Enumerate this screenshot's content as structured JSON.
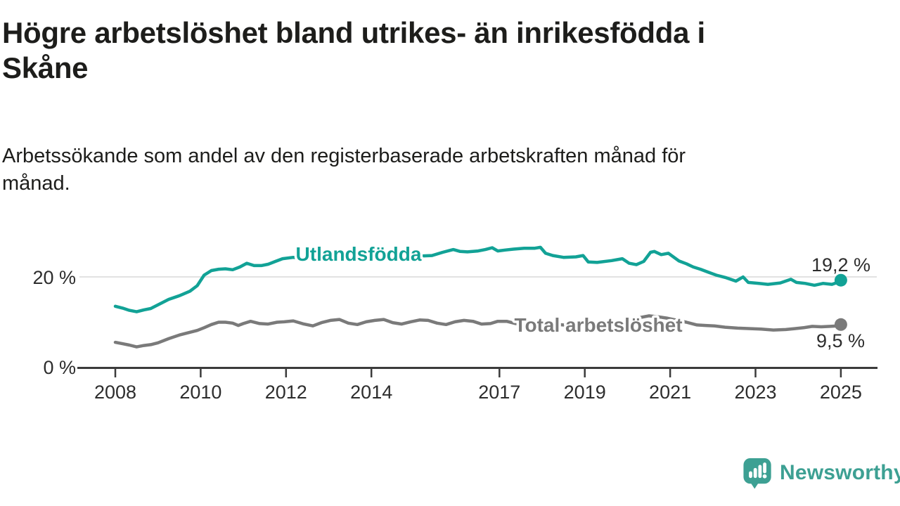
{
  "header": {
    "title": "Högre arbetslöshet bland utrikes- än inrikesfödda i Skåne",
    "subtitle": "Arbetssökande som andel av den registerbaserade arbetskraften månad för månad."
  },
  "chart_data": {
    "type": "line",
    "title": "Högre arbetslöshet bland utrikes- än inrikesfödda i Skåne",
    "subtitle": "Arbetssökande som andel av den registerbaserade arbetskraften månad för månad.",
    "xlabel": "",
    "ylabel": "",
    "grid": "horizontal-gridline-at-20-only",
    "legend": "inline-series-labels",
    "x_axis": {
      "range": [
        2007.1,
        2025.9
      ],
      "ticks": [
        2008,
        2010,
        2012,
        2014,
        2017,
        2019,
        2021,
        2023,
        2025
      ]
    },
    "y_axis": {
      "range": [
        0,
        29
      ],
      "ticks": [
        {
          "value": 0,
          "label": "0 %"
        },
        {
          "value": 20,
          "label": "20 %"
        }
      ]
    },
    "series": [
      {
        "name": "Utlandsfödda",
        "color": "#12a296",
        "end_value": 19.2,
        "end_label": "19,2 %",
        "points": [
          [
            2008.0,
            13.5
          ],
          [
            2008.17,
            13.1
          ],
          [
            2008.33,
            12.6
          ],
          [
            2008.5,
            12.3
          ],
          [
            2008.67,
            12.7
          ],
          [
            2008.83,
            13.0
          ],
          [
            2009.0,
            13.8
          ],
          [
            2009.25,
            15.0
          ],
          [
            2009.5,
            15.8
          ],
          [
            2009.75,
            16.8
          ],
          [
            2009.92,
            18.0
          ],
          [
            2010.08,
            20.3
          ],
          [
            2010.25,
            21.3
          ],
          [
            2010.42,
            21.6
          ],
          [
            2010.58,
            21.7
          ],
          [
            2010.75,
            21.5
          ],
          [
            2010.92,
            22.1
          ],
          [
            2011.08,
            22.9
          ],
          [
            2011.25,
            22.4
          ],
          [
            2011.42,
            22.4
          ],
          [
            2011.58,
            22.7
          ],
          [
            2011.75,
            23.3
          ],
          [
            2011.92,
            23.9
          ],
          [
            2012.17,
            24.2
          ],
          [
            2012.42,
            24.0
          ],
          [
            2012.67,
            24.3
          ],
          [
            2012.92,
            24.6
          ],
          [
            2013.17,
            24.4
          ],
          [
            2013.42,
            24.5
          ],
          [
            2013.67,
            24.7
          ],
          [
            2013.92,
            24.8
          ],
          [
            2014.17,
            24.9
          ],
          [
            2014.42,
            24.7
          ],
          [
            2014.67,
            24.9
          ],
          [
            2014.92,
            24.7
          ],
          [
            2015.17,
            24.5
          ],
          [
            2015.42,
            24.6
          ],
          [
            2015.67,
            25.3
          ],
          [
            2015.92,
            25.9
          ],
          [
            2016.08,
            25.5
          ],
          [
            2016.25,
            25.4
          ],
          [
            2016.5,
            25.6
          ],
          [
            2016.67,
            25.9
          ],
          [
            2016.83,
            26.3
          ],
          [
            2016.96,
            25.6
          ],
          [
            2017.13,
            25.8
          ],
          [
            2017.33,
            26.0
          ],
          [
            2017.58,
            26.2
          ],
          [
            2017.83,
            26.2
          ],
          [
            2017.96,
            26.4
          ],
          [
            2018.08,
            25.1
          ],
          [
            2018.25,
            24.6
          ],
          [
            2018.5,
            24.2
          ],
          [
            2018.79,
            24.3
          ],
          [
            2018.96,
            24.6
          ],
          [
            2019.08,
            23.2
          ],
          [
            2019.29,
            23.1
          ],
          [
            2019.63,
            23.5
          ],
          [
            2019.88,
            23.9
          ],
          [
            2020.04,
            22.9
          ],
          [
            2020.21,
            22.6
          ],
          [
            2020.38,
            23.3
          ],
          [
            2020.54,
            25.3
          ],
          [
            2020.63,
            25.5
          ],
          [
            2020.79,
            24.8
          ],
          [
            2020.96,
            25.1
          ],
          [
            2021.21,
            23.4
          ],
          [
            2021.38,
            22.8
          ],
          [
            2021.54,
            22.1
          ],
          [
            2021.71,
            21.6
          ],
          [
            2021.88,
            21.0
          ],
          [
            2022.08,
            20.3
          ],
          [
            2022.29,
            19.8
          ],
          [
            2022.54,
            19.0
          ],
          [
            2022.71,
            19.9
          ],
          [
            2022.83,
            18.7
          ],
          [
            2023.08,
            18.5
          ],
          [
            2023.29,
            18.3
          ],
          [
            2023.58,
            18.6
          ],
          [
            2023.83,
            19.4
          ],
          [
            2023.96,
            18.7
          ],
          [
            2024.17,
            18.5
          ],
          [
            2024.38,
            18.1
          ],
          [
            2024.58,
            18.5
          ],
          [
            2024.79,
            18.3
          ],
          [
            2024.92,
            18.7
          ],
          [
            2025.0,
            19.2
          ]
        ]
      },
      {
        "name": "Total arbetslöshet",
        "color": "#7a7a7a",
        "end_value": 9.5,
        "end_label": "9,5 %",
        "points": [
          [
            2008.0,
            5.6
          ],
          [
            2008.17,
            5.3
          ],
          [
            2008.33,
            5.0
          ],
          [
            2008.5,
            4.6
          ],
          [
            2008.67,
            4.9
          ],
          [
            2008.83,
            5.1
          ],
          [
            2009.0,
            5.5
          ],
          [
            2009.25,
            6.4
          ],
          [
            2009.5,
            7.2
          ],
          [
            2009.75,
            7.8
          ],
          [
            2009.92,
            8.2
          ],
          [
            2010.08,
            8.8
          ],
          [
            2010.25,
            9.5
          ],
          [
            2010.42,
            10.0
          ],
          [
            2010.58,
            10.0
          ],
          [
            2010.75,
            9.8
          ],
          [
            2010.88,
            9.3
          ],
          [
            2011.0,
            9.7
          ],
          [
            2011.17,
            10.2
          ],
          [
            2011.38,
            9.7
          ],
          [
            2011.58,
            9.6
          ],
          [
            2011.79,
            10.0
          ],
          [
            2011.96,
            10.1
          ],
          [
            2012.17,
            10.3
          ],
          [
            2012.42,
            9.6
          ],
          [
            2012.63,
            9.2
          ],
          [
            2012.83,
            9.9
          ],
          [
            2013.04,
            10.4
          ],
          [
            2013.25,
            10.6
          ],
          [
            2013.46,
            9.8
          ],
          [
            2013.67,
            9.5
          ],
          [
            2013.88,
            10.1
          ],
          [
            2014.08,
            10.4
          ],
          [
            2014.29,
            10.6
          ],
          [
            2014.5,
            9.9
          ],
          [
            2014.71,
            9.6
          ],
          [
            2014.92,
            10.1
          ],
          [
            2015.13,
            10.5
          ],
          [
            2015.33,
            10.4
          ],
          [
            2015.54,
            9.8
          ],
          [
            2015.75,
            9.5
          ],
          [
            2015.96,
            10.1
          ],
          [
            2016.17,
            10.4
          ],
          [
            2016.38,
            10.2
          ],
          [
            2016.58,
            9.6
          ],
          [
            2016.79,
            9.7
          ],
          [
            2016.96,
            10.2
          ],
          [
            2017.17,
            10.2
          ],
          [
            2017.38,
            9.7
          ],
          [
            2017.63,
            9.5
          ],
          [
            2017.88,
            10.0
          ],
          [
            2018.13,
            10.0
          ],
          [
            2018.38,
            9.5
          ],
          [
            2018.63,
            9.3
          ],
          [
            2018.88,
            9.7
          ],
          [
            2019.13,
            9.8
          ],
          [
            2019.38,
            9.4
          ],
          [
            2019.63,
            9.4
          ],
          [
            2019.88,
            10.0
          ],
          [
            2020.13,
            10.5
          ],
          [
            2020.33,
            11.1
          ],
          [
            2020.5,
            11.4
          ],
          [
            2020.71,
            11.2
          ],
          [
            2020.92,
            10.9
          ],
          [
            2021.13,
            10.5
          ],
          [
            2021.38,
            10.0
          ],
          [
            2021.63,
            9.4
          ],
          [
            2021.83,
            9.3
          ],
          [
            2022.04,
            9.2
          ],
          [
            2022.29,
            8.9
          ],
          [
            2022.58,
            8.7
          ],
          [
            2022.88,
            8.6
          ],
          [
            2023.13,
            8.5
          ],
          [
            2023.42,
            8.3
          ],
          [
            2023.71,
            8.4
          ],
          [
            2023.92,
            8.6
          ],
          [
            2024.13,
            8.8
          ],
          [
            2024.33,
            9.1
          ],
          [
            2024.54,
            9.0
          ],
          [
            2024.75,
            9.1
          ],
          [
            2024.92,
            9.2
          ],
          [
            2025.0,
            9.5
          ]
        ]
      }
    ]
  },
  "branding": {
    "logo_text": "Newsworthy",
    "logo_color": "#3da093",
    "logo_icon": "speech-bubble-bar-chart-exclamation-icon"
  }
}
